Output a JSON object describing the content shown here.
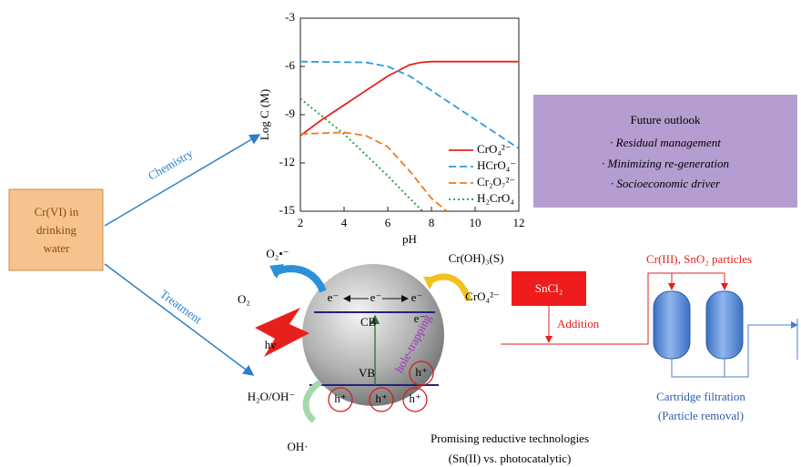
{
  "source": {
    "lines": [
      "Cr(VI) in",
      "drinking",
      "water"
    ]
  },
  "routes": {
    "chemistry": "Chemistry",
    "treatment": "Treatment"
  },
  "chart": {
    "type": "line",
    "xlabel": "pH",
    "ylabel": "Log C (M)",
    "xlim": [
      2,
      12
    ],
    "ylim": [
      -15,
      -3
    ],
    "xticks": [
      2,
      4,
      6,
      8,
      10,
      12
    ],
    "yticks": [
      -3,
      -6,
      -9,
      -12,
      -15
    ],
    "series": [
      {
        "name": "CrO₄²⁻",
        "color": "#e8201c",
        "style": "solid",
        "x": [
          2,
          3,
          4,
          5,
          6,
          7,
          7.5,
          8,
          12
        ],
        "values": [
          -10.3,
          -9.3,
          -8.4,
          -7.5,
          -6.6,
          -5.9,
          -5.75,
          -5.7,
          -5.7
        ]
      },
      {
        "name": "HCrO₄⁻",
        "color": "#2a9de0",
        "style": "dashed",
        "x": [
          2,
          5,
          6,
          7,
          8,
          9,
          10,
          11,
          12
        ],
        "values": [
          -5.7,
          -5.75,
          -6.0,
          -6.6,
          -7.5,
          -8.4,
          -9.3,
          -10.2,
          -11.1
        ]
      },
      {
        "name": "Cr₂O₇²⁻",
        "color": "#f07b1a",
        "style": "dashed",
        "x": [
          2,
          4,
          5,
          6,
          7,
          8,
          8.7
        ],
        "values": [
          -10.2,
          -10.1,
          -10.3,
          -11.0,
          -12.5,
          -14.2,
          -15
        ]
      },
      {
        "name": "H₂CrO₄",
        "color": "#1e9a3c",
        "style": "dotted",
        "x": [
          2,
          3,
          4,
          5,
          6,
          7,
          7.6
        ],
        "values": [
          -8,
          -9.1,
          -10.2,
          -11.5,
          -12.8,
          -14.2,
          -15
        ]
      }
    ]
  },
  "outlook": {
    "title": "Future outlook",
    "items": [
      "· Residual management",
      "· Minimizing re-generation",
      "· Socioeconomic driver"
    ]
  },
  "photo": {
    "superoxide": "O₂•⁻",
    "oxygen": "O₂",
    "light": "hν",
    "cb": "CB",
    "vb": "VB",
    "electrons": [
      "e⁻",
      "e⁻",
      "e⁻",
      "e⁻"
    ],
    "holes": [
      "h⁺",
      "h⁺",
      "h⁺",
      "h⁺"
    ],
    "trap": "hole-trapping",
    "product": "Cr(OH)₃(S)",
    "reactant": "CrO₄²⁻",
    "water": "H₂O/OH⁻",
    "radical": "OH·"
  },
  "process": {
    "reagent": "SnCl₂",
    "addition": "Addition",
    "particles": "Cr(III), SnO₂ particles",
    "filter": "Cartridge filtration",
    "removal": "(Particle removal)"
  },
  "caption": {
    "lines": [
      "Promising reductive technologies",
      "(Sn(II) vs. photocatalytic)"
    ]
  }
}
